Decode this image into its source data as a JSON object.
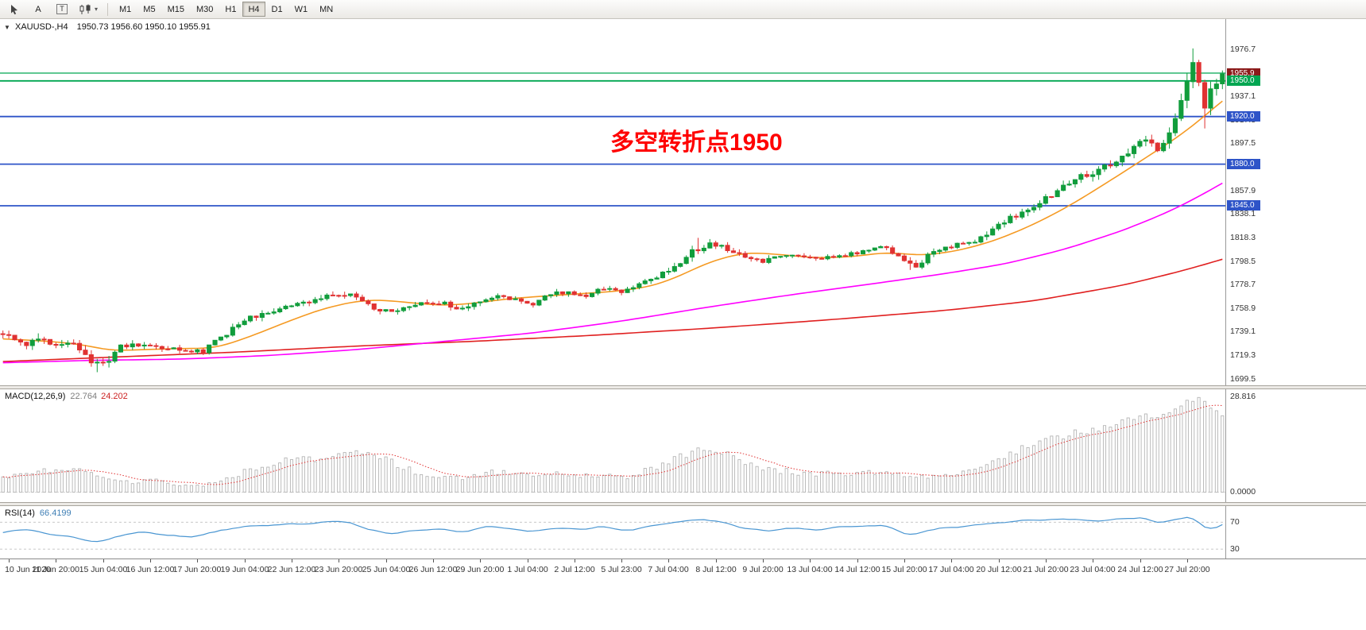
{
  "toolbar": {
    "text_tool_label": "A",
    "label_tool_label": "T",
    "timeframes": [
      "M1",
      "M5",
      "M15",
      "M30",
      "H1",
      "H4",
      "D1",
      "W1",
      "MN"
    ],
    "active_timeframe": "H4"
  },
  "chart": {
    "header": {
      "symbol": "XAUUSD-,H4",
      "ohlc": "1950.73 1956.60 1950.10 1955.91"
    },
    "annotation": {
      "text": "多空转折点1950",
      "color": "#ff0000"
    },
    "price_axis_labels": [
      "1976.7",
      "1956.9",
      "1937.1",
      "1917.3",
      "1897.5",
      "1877.7",
      "1857.9",
      "1838.1",
      "1818.3",
      "1798.5",
      "1778.7",
      "1758.9",
      "1739.1",
      "1719.3",
      "1699.5"
    ],
    "price_badges": [
      {
        "text": "1955.9",
        "price": 1955.91,
        "bg": "#8b1a1a"
      },
      {
        "text": "1950.0",
        "price": 1950.0,
        "bg": "#00a651"
      },
      {
        "text": "1920.0",
        "price": 1920.0,
        "bg": "#2e54c8"
      },
      {
        "text": "1880.0",
        "price": 1880.0,
        "bg": "#2e54c8"
      },
      {
        "text": "1845.0",
        "price": 1845.0,
        "bg": "#2e54c8"
      }
    ],
    "levels": [
      {
        "price": 1956.6,
        "color": "#00a651",
        "width": 1.3
      },
      {
        "price": 1950.0,
        "color": "#00a651",
        "width": 1.8
      },
      {
        "price": 1920.0,
        "color": "#2e54c8",
        "width": 1.8
      },
      {
        "price": 1880.0,
        "color": "#2e54c8",
        "width": 1.8
      },
      {
        "price": 1845.0,
        "color": "#2e54c8",
        "width": 1.8
      }
    ],
    "time_axis": [
      "10 Jun 2020",
      "11 Jun 20:00",
      "15 Jun 04:00",
      "16 Jun 12:00",
      "17 Jun 20:00",
      "19 Jun 04:00",
      "22 Jun 12:00",
      "23 Jun 20:00",
      "25 Jun 04:00",
      "26 Jun 12:00",
      "29 Jun 20:00",
      "1 Jul 04:00",
      "2 Jul 12:00",
      "5 Jul 23:00",
      "7 Jul 04:00",
      "8 Jul 12:00",
      "9 Jul 20:00",
      "13 Jul 04:00",
      "14 Jul 12:00",
      "15 Jul 20:00",
      "17 Jul 04:00",
      "20 Jul 12:00",
      "21 Jul 20:00",
      "23 Jul 04:00",
      "24 Jul 12:00",
      "27 Jul 20:00"
    ]
  },
  "macd": {
    "title": "MACD(12,26,9)",
    "value_main": "22.764",
    "value_signal": "24.202",
    "axis": [
      {
        "text": "28.816",
        "v": 28.816
      },
      {
        "text": "0.0000",
        "v": 0
      }
    ]
  },
  "rsi": {
    "title": "RSI(14)",
    "value": "66.4199",
    "axis": [
      {
        "text": "70",
        "v": 70
      },
      {
        "text": "30",
        "v": 30
      }
    ],
    "levels": [
      70,
      30
    ]
  },
  "chart_data": {
    "type": "candlestick",
    "symbol": "XAUUSD",
    "timeframe": "H4",
    "bars": 208,
    "price_range": {
      "min": 1696,
      "max": 1998
    },
    "colors": {
      "up": "#119d3c",
      "down": "#e03232",
      "ma_fast": "#f59a23",
      "ma_mid": "#ff00ff",
      "ma_slow": "#e02020",
      "macd_hist": "#b4b4b4",
      "macd_signal": "#e03131",
      "rsi": "#4a96d2"
    },
    "close_keyframes": [
      [
        0,
        1736
      ],
      [
        3,
        1727
      ],
      [
        6,
        1735
      ],
      [
        9,
        1729
      ],
      [
        12,
        1731
      ],
      [
        15,
        1714
      ],
      [
        17,
        1711
      ],
      [
        20,
        1727
      ],
      [
        24,
        1729
      ],
      [
        28,
        1725
      ],
      [
        31,
        1722
      ],
      [
        34,
        1723
      ],
      [
        37,
        1734
      ],
      [
        40,
        1746
      ],
      [
        43,
        1753
      ],
      [
        46,
        1756
      ],
      [
        50,
        1763
      ],
      [
        54,
        1767
      ],
      [
        57,
        1771
      ],
      [
        60,
        1768
      ],
      [
        63,
        1759
      ],
      [
        66,
        1755
      ],
      [
        69,
        1760
      ],
      [
        72,
        1764
      ],
      [
        75,
        1763
      ],
      [
        78,
        1758
      ],
      [
        81,
        1766
      ],
      [
        84,
        1770
      ],
      [
        87,
        1766
      ],
      [
        90,
        1763
      ],
      [
        93,
        1771
      ],
      [
        96,
        1772
      ],
      [
        99,
        1770
      ],
      [
        102,
        1776
      ],
      [
        105,
        1773
      ],
      [
        108,
        1778
      ],
      [
        111,
        1786
      ],
      [
        114,
        1794
      ],
      [
        117,
        1806
      ],
      [
        120,
        1812
      ],
      [
        123,
        1809
      ],
      [
        126,
        1803
      ],
      [
        129,
        1799
      ],
      [
        132,
        1802
      ],
      [
        135,
        1803
      ],
      [
        138,
        1800
      ],
      [
        141,
        1802
      ],
      [
        144,
        1805
      ],
      [
        147,
        1808
      ],
      [
        150,
        1810
      ],
      [
        153,
        1799
      ],
      [
        155,
        1794
      ],
      [
        158,
        1807
      ],
      [
        161,
        1811
      ],
      [
        164,
        1814
      ],
      [
        167,
        1820
      ],
      [
        170,
        1832
      ],
      [
        173,
        1840
      ],
      [
        176,
        1849
      ],
      [
        179,
        1858
      ],
      [
        182,
        1868
      ],
      [
        185,
        1871
      ],
      [
        188,
        1880
      ],
      [
        191,
        1890
      ],
      [
        194,
        1900
      ],
      [
        196,
        1893
      ],
      [
        198,
        1906
      ],
      [
        200,
        1932
      ],
      [
        202,
        1964
      ],
      [
        203,
        1952
      ],
      [
        204,
        1930
      ],
      [
        205,
        1944
      ],
      [
        206,
        1951
      ],
      [
        207,
        1955.91
      ]
    ],
    "volatility_keyframes": [
      [
        0,
        8
      ],
      [
        10,
        7
      ],
      [
        17,
        8
      ],
      [
        22,
        4.5
      ],
      [
        30,
        4
      ],
      [
        40,
        5
      ],
      [
        50,
        4.5
      ],
      [
        60,
        4.5
      ],
      [
        70,
        4
      ],
      [
        80,
        4
      ],
      [
        90,
        3.5
      ],
      [
        100,
        3.5
      ],
      [
        108,
        4
      ],
      [
        116,
        5.5
      ],
      [
        124,
        4.5
      ],
      [
        132,
        3.5
      ],
      [
        140,
        3.5
      ],
      [
        148,
        3.5
      ],
      [
        154,
        4.5
      ],
      [
        162,
        3.5
      ],
      [
        170,
        5
      ],
      [
        180,
        6
      ],
      [
        190,
        6.5
      ],
      [
        196,
        7
      ],
      [
        200,
        10
      ],
      [
        202,
        13
      ],
      [
        204,
        12
      ],
      [
        207,
        7
      ]
    ],
    "high_overrides": [
      [
        118,
        1818
      ],
      [
        202,
        1977.3
      ]
    ],
    "low_overrides": [
      [
        16,
        1705
      ],
      [
        154,
        1791
      ],
      [
        204,
        1910
      ]
    ],
    "ma_fast_keyframes": [
      [
        0,
        1733
      ],
      [
        8,
        1731
      ],
      [
        14,
        1728
      ],
      [
        18,
        1723
      ],
      [
        24,
        1724
      ],
      [
        30,
        1725
      ],
      [
        36,
        1725
      ],
      [
        42,
        1735
      ],
      [
        48,
        1747
      ],
      [
        54,
        1758
      ],
      [
        60,
        1765
      ],
      [
        64,
        1766
      ],
      [
        70,
        1763
      ],
      [
        75,
        1761
      ],
      [
        80,
        1763
      ],
      [
        86,
        1767
      ],
      [
        92,
        1769
      ],
      [
        98,
        1771
      ],
      [
        104,
        1773
      ],
      [
        110,
        1777
      ],
      [
        114,
        1784
      ],
      [
        120,
        1798
      ],
      [
        126,
        1806
      ],
      [
        132,
        1804
      ],
      [
        138,
        1801
      ],
      [
        144,
        1802
      ],
      [
        150,
        1806
      ],
      [
        156,
        1803
      ],
      [
        162,
        1807
      ],
      [
        168,
        1815
      ],
      [
        174,
        1827
      ],
      [
        180,
        1842
      ],
      [
        186,
        1860
      ],
      [
        192,
        1879
      ],
      [
        197,
        1895
      ],
      [
        201,
        1908
      ],
      [
        204,
        1921
      ],
      [
        207,
        1933
      ]
    ],
    "ma_mid_keyframes": [
      [
        0,
        1713
      ],
      [
        15,
        1715
      ],
      [
        30,
        1716
      ],
      [
        45,
        1719
      ],
      [
        60,
        1724
      ],
      [
        75,
        1731
      ],
      [
        90,
        1738
      ],
      [
        105,
        1748
      ],
      [
        120,
        1760
      ],
      [
        135,
        1771
      ],
      [
        150,
        1781
      ],
      [
        160,
        1788
      ],
      [
        170,
        1796
      ],
      [
        180,
        1808
      ],
      [
        190,
        1824
      ],
      [
        197,
        1838
      ],
      [
        202,
        1850
      ],
      [
        207,
        1864
      ]
    ],
    "ma_slow_keyframes": [
      [
        0,
        1714
      ],
      [
        20,
        1718
      ],
      [
        40,
        1722
      ],
      [
        60,
        1727
      ],
      [
        80,
        1731
      ],
      [
        100,
        1736
      ],
      [
        120,
        1742
      ],
      [
        140,
        1749
      ],
      [
        160,
        1757
      ],
      [
        175,
        1765
      ],
      [
        190,
        1778
      ],
      [
        200,
        1790
      ],
      [
        207,
        1800
      ]
    ],
    "macd_keyframes": [
      [
        0,
        4
      ],
      [
        6,
        6.5
      ],
      [
        10,
        7
      ],
      [
        14,
        6
      ],
      [
        18,
        4
      ],
      [
        22,
        3
      ],
      [
        26,
        3.5
      ],
      [
        30,
        2.2
      ],
      [
        34,
        2
      ],
      [
        38,
        4
      ],
      [
        42,
        7
      ],
      [
        46,
        9
      ],
      [
        50,
        10.5
      ],
      [
        54,
        9.5
      ],
      [
        58,
        11.5
      ],
      [
        62,
        12
      ],
      [
        66,
        9
      ],
      [
        70,
        6
      ],
      [
        74,
        5
      ],
      [
        78,
        4
      ],
      [
        82,
        6
      ],
      [
        86,
        6
      ],
      [
        90,
        5
      ],
      [
        94,
        6
      ],
      [
        98,
        5
      ],
      [
        102,
        5.5
      ],
      [
        106,
        4.5
      ],
      [
        110,
        7
      ],
      [
        114,
        10
      ],
      [
        118,
        12.5
      ],
      [
        122,
        12
      ],
      [
        126,
        9
      ],
      [
        130,
        7
      ],
      [
        134,
        6
      ],
      [
        138,
        5.5
      ],
      [
        142,
        5.5
      ],
      [
        146,
        6
      ],
      [
        150,
        6
      ],
      [
        154,
        4.5
      ],
      [
        158,
        5
      ],
      [
        162,
        6
      ],
      [
        166,
        8
      ],
      [
        170,
        11
      ],
      [
        174,
        14
      ],
      [
        178,
        16
      ],
      [
        182,
        18
      ],
      [
        186,
        19
      ],
      [
        190,
        21
      ],
      [
        194,
        23.5
      ],
      [
        197,
        22.5
      ],
      [
        200,
        25.5
      ],
      [
        202,
        28.2
      ],
      [
        203,
        28.8
      ],
      [
        205,
        25.5
      ],
      [
        207,
        22.76
      ]
    ],
    "rsi_keyframes": [
      [
        0,
        55
      ],
      [
        4,
        60
      ],
      [
        8,
        52
      ],
      [
        12,
        48
      ],
      [
        16,
        40
      ],
      [
        20,
        50
      ],
      [
        24,
        55
      ],
      [
        28,
        51
      ],
      [
        32,
        48
      ],
      [
        36,
        56
      ],
      [
        40,
        62
      ],
      [
        44,
        65
      ],
      [
        48,
        66
      ],
      [
        52,
        68
      ],
      [
        56,
        71
      ],
      [
        58,
        72
      ],
      [
        62,
        59
      ],
      [
        66,
        52
      ],
      [
        70,
        58
      ],
      [
        74,
        60
      ],
      [
        78,
        54
      ],
      [
        82,
        64
      ],
      [
        86,
        60
      ],
      [
        90,
        55
      ],
      [
        94,
        63
      ],
      [
        98,
        59
      ],
      [
        102,
        64
      ],
      [
        106,
        57
      ],
      [
        110,
        65
      ],
      [
        114,
        70
      ],
      [
        118,
        74
      ],
      [
        122,
        71
      ],
      [
        126,
        61
      ],
      [
        130,
        57
      ],
      [
        134,
        62
      ],
      [
        138,
        59
      ],
      [
        142,
        62
      ],
      [
        146,
        64
      ],
      [
        150,
        65
      ],
      [
        154,
        50
      ],
      [
        158,
        60
      ],
      [
        162,
        63
      ],
      [
        166,
        66
      ],
      [
        170,
        70
      ],
      [
        174,
        73
      ],
      [
        178,
        74
      ],
      [
        182,
        75
      ],
      [
        186,
        71
      ],
      [
        190,
        75
      ],
      [
        194,
        76
      ],
      [
        196,
        67
      ],
      [
        198,
        72
      ],
      [
        200,
        76
      ],
      [
        202,
        79
      ],
      [
        204,
        60
      ],
      [
        205,
        58
      ],
      [
        207,
        66.42
      ]
    ]
  }
}
